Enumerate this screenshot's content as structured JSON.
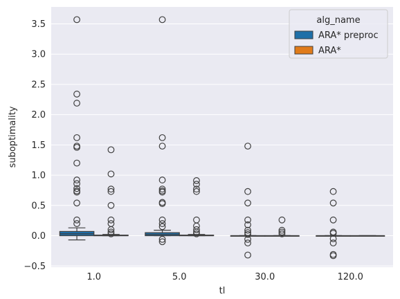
{
  "chart_data": {
    "type": "boxplot",
    "title": "",
    "xlabel": "tl",
    "ylabel": "suboptimality",
    "categories": [
      "1.0",
      "5.0",
      "30.0",
      "120.0"
    ],
    "ylim": [
      -0.52,
      3.78
    ],
    "yticks": [
      -0.5,
      0.0,
      0.5,
      1.0,
      1.5,
      2.0,
      2.5,
      3.0,
      3.5
    ],
    "ytick_labels": [
      "−0.5",
      "0.0",
      "0.5",
      "1.0",
      "1.5",
      "2.0",
      "2.5",
      "3.0",
      "3.5"
    ],
    "grid": true,
    "legend": {
      "title": "alg_name",
      "placement": "top-right"
    },
    "series": [
      {
        "name": "ARA* preproc",
        "color": "#1f6fa8",
        "boxes": [
          {
            "category": "1.0",
            "q1": 0.0,
            "median": 0.03,
            "q3": 0.07,
            "whisker_low": -0.07,
            "whisker_high": 0.13,
            "outliers": [
              0.2,
              0.26,
              0.54,
              0.72,
              0.74,
              0.78,
              0.86,
              0.92,
              1.2,
              1.46,
              1.48,
              1.62,
              2.19,
              2.34,
              3.57
            ]
          },
          {
            "category": "5.0",
            "q1": 0.0,
            "median": 0.02,
            "q3": 0.05,
            "whisker_low": 0.0,
            "whisker_high": 0.09,
            "outliers": [
              -0.1,
              -0.06,
              0.15,
              0.2,
              0.26,
              0.53,
              0.55,
              0.72,
              0.74,
              0.77,
              0.92,
              1.48,
              1.62,
              3.57
            ]
          },
          {
            "category": "30.0",
            "q1": 0.0,
            "median": 0.0,
            "q3": 0.0,
            "whisker_low": 0.0,
            "whisker_high": 0.0,
            "outliers": [
              -0.32,
              -0.12,
              -0.06,
              0.02,
              0.05,
              0.09,
              0.18,
              0.26,
              0.54,
              0.73,
              1.48
            ]
          },
          {
            "category": "120.0",
            "q1": 0.0,
            "median": 0.0,
            "q3": 0.0,
            "whisker_low": 0.0,
            "whisker_high": 0.0,
            "outliers": [
              -0.33,
              -0.31,
              -0.12,
              -0.05,
              0.04,
              0.06,
              0.26,
              0.54,
              0.73
            ]
          }
        ]
      },
      {
        "name": "ARA*",
        "color": "#e07b1a",
        "boxes": [
          {
            "category": "1.0",
            "q1": 0.0,
            "median": 0.0,
            "q3": 0.01,
            "whisker_low": 0.0,
            "whisker_high": 0.02,
            "outliers": [
              0.03,
              0.06,
              0.1,
              0.2,
              0.26,
              0.5,
              0.73,
              0.77,
              1.02,
              1.42
            ]
          },
          {
            "category": "5.0",
            "q1": 0.0,
            "median": 0.0,
            "q3": 0.01,
            "whisker_low": 0.0,
            "whisker_high": 0.02,
            "outliers": [
              0.03,
              0.06,
              0.1,
              0.16,
              0.26,
              0.73,
              0.77,
              0.85,
              0.91
            ]
          },
          {
            "category": "30.0",
            "q1": 0.0,
            "median": 0.0,
            "q3": 0.0,
            "whisker_low": 0.0,
            "whisker_high": 0.0,
            "outliers": [
              0.03,
              0.06,
              0.09,
              0.26
            ]
          },
          {
            "category": "120.0",
            "q1": 0.0,
            "median": 0.0,
            "q3": 0.0,
            "whisker_low": 0.0,
            "whisker_high": 0.0,
            "outliers": []
          }
        ]
      }
    ]
  }
}
